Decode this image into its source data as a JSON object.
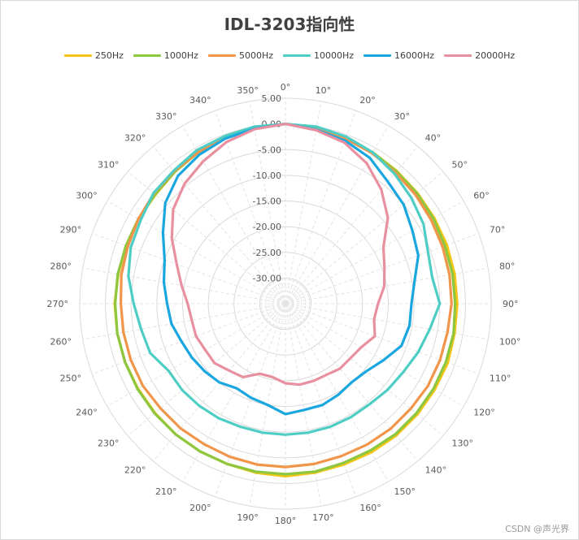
{
  "chart_data": {
    "type": "radar",
    "title": "IDL-3203指向性",
    "angles": [
      0,
      10,
      20,
      30,
      40,
      50,
      60,
      70,
      80,
      90,
      100,
      110,
      120,
      130,
      140,
      150,
      160,
      170,
      180,
      190,
      200,
      210,
      220,
      230,
      240,
      250,
      260,
      270,
      280,
      290,
      300,
      310,
      320,
      330,
      340,
      350
    ],
    "angle_labels": [
      "0°",
      "10°",
      "20°",
      "30°",
      "40°",
      "50°",
      "60°",
      "70°",
      "80°",
      "90°",
      "100°",
      "110°",
      "120°",
      "130°",
      "140°",
      "150°",
      "160°",
      "170°",
      "180°",
      "190°",
      "200°",
      "210°",
      "220°",
      "230°",
      "240°",
      "250°",
      "260°",
      "270°",
      "280°",
      "290°",
      "300°",
      "310°",
      "320°",
      "330°",
      "340°",
      "350°"
    ],
    "radial_ticks": [
      5,
      0,
      -5,
      -10,
      -15,
      -20,
      -25,
      -30
    ],
    "radial_tick_labels": [
      "5.00",
      "0.00",
      "-5.00",
      "-10.00",
      "-15.00",
      "-20.00",
      "-25.00",
      "-30.00"
    ],
    "rlim": [
      -35,
      5
    ],
    "legend_position": "top",
    "series": [
      {
        "name": "250Hz",
        "color": "#F5C518",
        "values": [
          0.0,
          -0.3,
          -0.6,
          -1.0,
          -1.3,
          -1.5,
          -1.6,
          -1.6,
          -1.6,
          -1.6,
          -1.6,
          -1.4,
          -1.5,
          -1.5,
          -1.5,
          -1.6,
          -1.7,
          -1.6,
          -1.4,
          -1.6,
          -1.8,
          -1.8,
          -1.8,
          -1.9,
          -1.9,
          -1.8,
          -1.8,
          -1.8,
          -2.0,
          -2.0,
          -2.0,
          -2.0,
          -1.5,
          -1.0,
          -0.6,
          -0.3
        ]
      },
      {
        "name": "1000Hz",
        "color": "#8DC63F",
        "values": [
          0.0,
          -0.3,
          -0.7,
          -1.0,
          -1.4,
          -1.6,
          -1.8,
          -2.0,
          -2.0,
          -2.0,
          -1.8,
          -1.8,
          -1.8,
          -1.8,
          -1.8,
          -2.0,
          -2.0,
          -1.8,
          -1.8,
          -1.8,
          -1.8,
          -1.8,
          -1.8,
          -1.8,
          -1.8,
          -1.8,
          -1.8,
          -1.9,
          -1.9,
          -2.0,
          -2.0,
          -1.9,
          -1.5,
          -1.0,
          -0.6,
          -0.3
        ]
      },
      {
        "name": "5000Hz",
        "color": "#F0954A",
        "values": [
          0.0,
          -0.4,
          -0.8,
          -1.2,
          -1.7,
          -2.0,
          -2.3,
          -2.5,
          -2.6,
          -2.7,
          -3.0,
          -3.0,
          -3.0,
          -3.2,
          -3.2,
          -3.3,
          -3.4,
          -3.3,
          -3.2,
          -3.2,
          -3.3,
          -3.4,
          -3.3,
          -3.3,
          -3.0,
          -3.0,
          -3.0,
          -3.0,
          -2.6,
          -2.4,
          -2.0,
          -1.6,
          -1.3,
          -1.0,
          -0.7,
          -0.4
        ]
      },
      {
        "name": "10000Hz",
        "color": "#4ECDC4",
        "values": [
          0.0,
          0.0,
          -0.4,
          -1.0,
          -2.0,
          -3.0,
          -4.0,
          -5.5,
          -6.0,
          -5.0,
          -6.5,
          -7.5,
          -8.5,
          -9.0,
          -9.5,
          -9.5,
          -9.5,
          -9.5,
          -9.5,
          -9.5,
          -9.5,
          -9.2,
          -9.0,
          -8.8,
          -8.8,
          -7.0,
          -6.5,
          -5.5,
          -4.0,
          -3.0,
          -2.5,
          -1.5,
          -1.2,
          -0.5,
          -0.3,
          0.0
        ]
      },
      {
        "name": "16000Hz",
        "color": "#1AA7E0",
        "values": [
          0.0,
          -0.6,
          -1.2,
          -2.2,
          -4.0,
          -5.0,
          -6.5,
          -7.5,
          -9.5,
          -10.5,
          -10.5,
          -11.0,
          -13.0,
          -14.5,
          -15.0,
          -14.5,
          -14.0,
          -14.0,
          -13.5,
          -15.0,
          -15.5,
          -16.0,
          -15.0,
          -14.5,
          -14.0,
          -13.5,
          -12.5,
          -12.0,
          -11.0,
          -10.0,
          -7.5,
          -4.5,
          -2.5,
          -1.5,
          -0.8,
          -0.4
        ]
      },
      {
        "name": "20000Hz",
        "color": "#E8909F",
        "values": [
          0.0,
          -0.7,
          -1.6,
          -3.4,
          -6.0,
          -9.0,
          -13.0,
          -14.5,
          -15.5,
          -17.0,
          -17.5,
          -16.5,
          -18.0,
          -18.5,
          -18.5,
          -19.0,
          -19.0,
          -19.0,
          -19.5,
          -20.5,
          -20.5,
          -18.5,
          -18.0,
          -17.0,
          -17.0,
          -16.5,
          -16.5,
          -16.0,
          -14.5,
          -12.5,
          -9.5,
          -6.5,
          -4.5,
          -3.0,
          -1.5,
          -0.5
        ]
      }
    ]
  },
  "watermark": "CSDN @声光界"
}
